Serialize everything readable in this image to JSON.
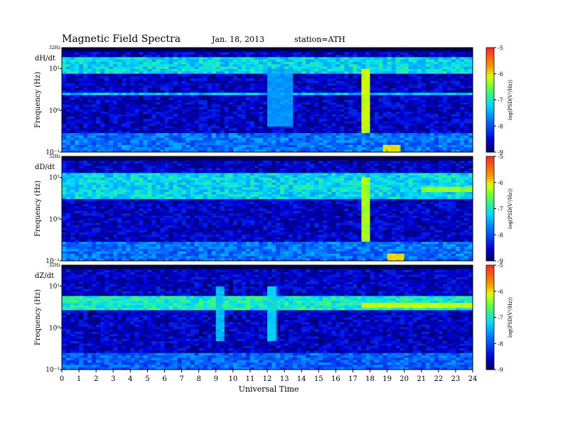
{
  "header": {
    "title": "Magnetic Field Spectra",
    "date": "Jan. 18, 2013",
    "station": "station=ATH"
  },
  "chart_data": {
    "type": "heatmap",
    "title": "Magnetic Field Spectra",
    "xlabel": "Universal Time",
    "ylabel": "Frequency (Hz)",
    "xlim": [
      0,
      24
    ],
    "x_ticks": [
      "0",
      "1",
      "2",
      "3",
      "4",
      "5",
      "6",
      "7",
      "8",
      "9",
      "10",
      "11",
      "12",
      "13",
      "14",
      "15",
      "16",
      "17",
      "18",
      "19",
      "20",
      "21",
      "22",
      "23",
      "24"
    ],
    "y_scale": "log",
    "ylim": [
      0.1,
      32
    ],
    "y_tick_labels": [
      "10⁻¹",
      "10⁰",
      "10¹"
    ],
    "y_top_label": "32Hz",
    "colorbar": {
      "label": "log(PSD(V²/Hz))",
      "range": [
        -9,
        -5
      ],
      "ticks": [
        "-5",
        "-6",
        "-7",
        "-8",
        "-9"
      ]
    },
    "panels": [
      {
        "name": "dH/dt",
        "bands": [
          {
            "freq_range": [
              8,
              20
            ],
            "level": -7.2
          },
          {
            "freq_range": [
              2.4,
              2.6
            ],
            "level": -7.3
          },
          {
            "freq_range": [
              0.1,
              0.3
            ],
            "level": -7.8
          }
        ],
        "events": [
          {
            "time_range": [
              17.5,
              18.0
            ],
            "freq_range": [
              0.3,
              10
            ],
            "level": -6.2
          },
          {
            "time_range": [
              18.8,
              19.8
            ],
            "freq_range": [
              0.1,
              0.15
            ],
            "level": -6.0
          },
          {
            "time_range": [
              12.0,
              13.5
            ],
            "freq_range": [
              0.4,
              10
            ],
            "level": -7.6
          }
        ]
      },
      {
        "name": "dD/dt",
        "bands": [
          {
            "freq_range": [
              3,
              12
            ],
            "level": -7.2
          },
          {
            "freq_range": [
              0.1,
              0.3
            ],
            "level": -7.8
          }
        ],
        "events": [
          {
            "time_range": [
              21.0,
              24.0
            ],
            "freq_range": [
              4.5,
              6
            ],
            "level": -6.4
          },
          {
            "time_range": [
              17.5,
              18.0
            ],
            "freq_range": [
              0.3,
              10
            ],
            "level": -6.3
          },
          {
            "time_range": [
              19.0,
              20.0
            ],
            "freq_range": [
              0.1,
              0.15
            ],
            "level": -6.0
          }
        ]
      },
      {
        "name": "dZ/dt",
        "bands": [
          {
            "freq_range": [
              2.6,
              6
            ],
            "level": -7.0
          },
          {
            "freq_range": [
              0.1,
              0.25
            ],
            "level": -7.9
          }
        ],
        "events": [
          {
            "time_range": [
              17.5,
              24.0
            ],
            "freq_range": [
              3.2,
              4.0
            ],
            "level": -6.2
          },
          {
            "time_range": [
              9.0,
              9.4
            ],
            "freq_range": [
              0.5,
              10
            ],
            "level": -7.4
          },
          {
            "time_range": [
              12.0,
              12.6
            ],
            "freq_range": [
              0.5,
              10
            ],
            "level": -7.3
          }
        ]
      }
    ]
  }
}
